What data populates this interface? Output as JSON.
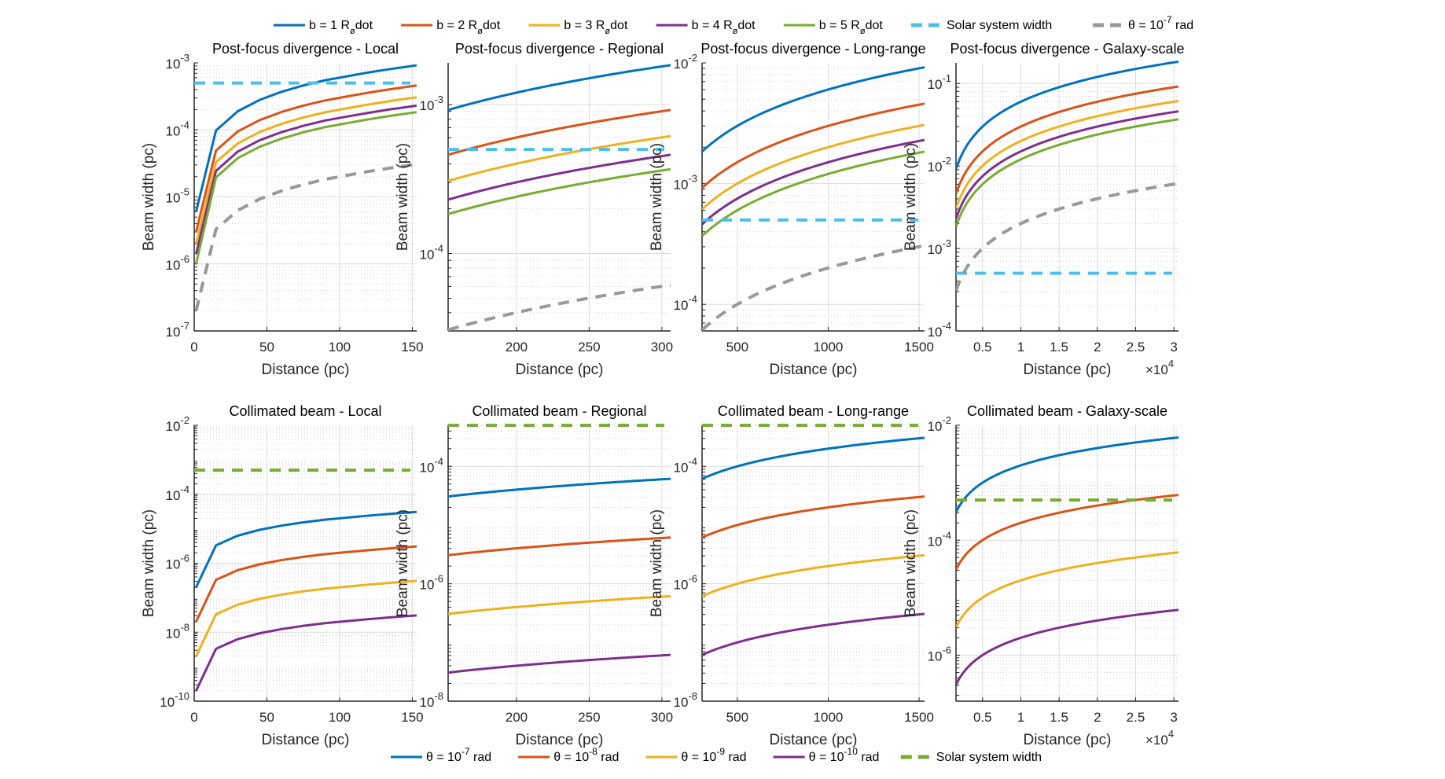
{
  "figure": {
    "top_legend": {
      "entries": [
        {
          "label": "b = 1 R",
          "sub": "ø",
          "suffix": "dot",
          "color": "#0072BD",
          "style": "solid"
        },
        {
          "label": "b = 2 R",
          "sub": "ø",
          "suffix": "dot",
          "color": "#D95319",
          "style": "solid"
        },
        {
          "label": "b = 3 R",
          "sub": "ø",
          "suffix": "dot",
          "color": "#EDB120",
          "style": "solid"
        },
        {
          "label": "b = 4 R",
          "sub": "ø",
          "suffix": "dot",
          "color": "#7E2F8E",
          "style": "solid"
        },
        {
          "label": "b = 5 R",
          "sub": "ø",
          "suffix": "dot",
          "color": "#77AC30",
          "style": "solid"
        },
        {
          "label": "Solar system width",
          "color": "#4DBEEE",
          "style": "dashed"
        },
        {
          "label": "θ = 10",
          "sup": "-7",
          "suffix": " rad",
          "color": "#999999",
          "style": "dashed"
        }
      ]
    },
    "bottom_legend": {
      "entries": [
        {
          "label": "θ = 10",
          "sup": "-7",
          "suffix": " rad",
          "color": "#0072BD",
          "style": "solid"
        },
        {
          "label": "θ = 10",
          "sup": "-8",
          "suffix": " rad",
          "color": "#D95319",
          "style": "solid"
        },
        {
          "label": "θ = 10",
          "sup": "-9",
          "suffix": " rad",
          "color": "#EDB120",
          "style": "solid"
        },
        {
          "label": "θ = 10",
          "sup": "-10",
          "suffix": " rad",
          "color": "#7E2F8E",
          "style": "solid"
        },
        {
          "label": "Solar system width",
          "color": "#77AC30",
          "style": "dashed"
        }
      ]
    }
  },
  "chart_data": [
    {
      "type": "line",
      "id": "pf-local",
      "row": 0,
      "col": 0,
      "title": "Post-focus divergence - Local",
      "xlabel": "Distance (pc)",
      "ylabel": "Beam width (pc)",
      "xscale": "linear",
      "yscale": "log",
      "xlim": [
        0,
        153
      ],
      "ylim_exp": [
        -7,
        -3
      ],
      "xticks": [
        0,
        50,
        100,
        150
      ],
      "xtick_labels": [
        "0",
        "50",
        "100",
        "150"
      ],
      "yticks_exp": [
        -7,
        -6,
        -5,
        -4,
        -3
      ],
      "grid": true,
      "x": [
        1.3,
        15,
        30,
        45,
        60,
        75,
        90,
        105,
        120,
        135,
        153
      ],
      "series": [
        {
          "name": "b = 1 R_ø dot",
          "color": "#0072BD",
          "style": "solid",
          "values": [
            6e-06,
            9.8e-05,
            0.00019,
            0.00028,
            0.00037,
            0.00046,
            0.00055,
            0.00063,
            0.00072,
            0.00081,
            0.00092
          ]
        },
        {
          "name": "b = 2 R_ø dot",
          "color": "#D95319",
          "style": "solid",
          "values": [
            3e-06,
            4.9e-05,
            9.5e-05,
            0.00014,
            0.000185,
            0.00023,
            0.000275,
            0.000315,
            0.00036,
            0.000405,
            0.00046
          ]
        },
        {
          "name": "b = 3 R_ø dot",
          "color": "#EDB120",
          "style": "solid",
          "values": [
            2e-06,
            3.3e-05,
            6.3e-05,
            9.3e-05,
            0.000123,
            0.000153,
            0.000183,
            0.00021,
            0.00024,
            0.00027,
            0.000307
          ]
        },
        {
          "name": "b = 4 R_ø dot",
          "color": "#7E2F8E",
          "style": "solid",
          "values": [
            1.4e-06,
            2.45e-05,
            4.75e-05,
            7e-05,
            9.25e-05,
            0.000115,
            0.000138,
            0.000158,
            0.00018,
            0.000203,
            0.00023
          ]
        },
        {
          "name": "b = 5 R_ø dot",
          "color": "#77AC30",
          "style": "solid",
          "values": [
            1e-06,
            1.95e-05,
            3.8e-05,
            5.6e-05,
            7.4e-05,
            9.2e-05,
            0.00011,
            0.000126,
            0.000144,
            0.000162,
            0.000184
          ]
        },
        {
          "name": "Solar system width",
          "color": "#4DBEEE",
          "style": "dashed",
          "constant": 0.0005
        },
        {
          "name": "θ = 1e-7 rad",
          "color": "#999999",
          "style": "dashed",
          "values": [
            2e-07,
            3.3e-06,
            6.3e-06,
            9.3e-06,
            1.23e-05,
            1.53e-05,
            1.83e-05,
            2.1e-05,
            2.4e-05,
            2.7e-05,
            3.07e-05
          ]
        }
      ]
    },
    {
      "type": "line",
      "id": "pf-regional",
      "row": 0,
      "col": 1,
      "title": "Post-focus divergence - Regional",
      "xlabel": "Distance (pc)",
      "ylabel": "Beam width (pc)",
      "xscale": "linear",
      "yscale": "log",
      "xlim": [
        153,
        306
      ],
      "ylim_exp": [
        -4.52,
        -2.72
      ],
      "xticks": [
        200,
        250,
        300
      ],
      "xtick_labels": [
        "200",
        "250",
        "300"
      ],
      "yticks_exp": [
        -4,
        -3
      ],
      "grid": true,
      "x": [
        153,
        306
      ],
      "curve": "linear",
      "series": [
        {
          "name": "b = 1 R_ø dot",
          "color": "#0072BD",
          "style": "solid",
          "values": [
            0.00092,
            0.00184
          ]
        },
        {
          "name": "b = 2 R_ø dot",
          "color": "#D95319",
          "style": "solid",
          "values": [
            0.00046,
            0.00092
          ]
        },
        {
          "name": "b = 3 R_ø dot",
          "color": "#EDB120",
          "style": "solid",
          "values": [
            0.000307,
            0.000613
          ]
        },
        {
          "name": "b = 4 R_ø dot",
          "color": "#7E2F8E",
          "style": "solid",
          "values": [
            0.00023,
            0.00046
          ]
        },
        {
          "name": "b = 5 R_ø dot",
          "color": "#77AC30",
          "style": "solid",
          "values": [
            0.000184,
            0.000368
          ]
        },
        {
          "name": "Solar system width",
          "color": "#4DBEEE",
          "style": "dashed",
          "constant": 0.0005
        },
        {
          "name": "θ = 1e-7 rad",
          "color": "#999999",
          "style": "dashed",
          "values": [
            3.07e-05,
            6.13e-05
          ]
        }
      ]
    },
    {
      "type": "line",
      "id": "pf-longrange",
      "row": 0,
      "col": 2,
      "title": "Post-focus divergence - Long-range",
      "xlabel": "Distance (pc)",
      "ylabel": "Beam width (pc)",
      "xscale": "linear",
      "yscale": "log",
      "xlim": [
        306,
        1530
      ],
      "ylim_exp": [
        -4.22,
        -2
      ],
      "xticks": [
        500,
        1000,
        1500
      ],
      "xtick_labels": [
        "500",
        "1000",
        "1500"
      ],
      "yticks_exp": [
        -4,
        -3,
        -2
      ],
      "grid": true,
      "x": [
        306,
        1530
      ],
      "curve": "linear",
      "series": [
        {
          "name": "b = 1 R_ø dot",
          "color": "#0072BD",
          "style": "solid",
          "values": [
            0.00184,
            0.0092
          ]
        },
        {
          "name": "b = 2 R_ø dot",
          "color": "#D95319",
          "style": "solid",
          "values": [
            0.00092,
            0.0046
          ]
        },
        {
          "name": "b = 3 R_ø dot",
          "color": "#EDB120",
          "style": "solid",
          "values": [
            0.000613,
            0.00307
          ]
        },
        {
          "name": "b = 4 R_ø dot",
          "color": "#7E2F8E",
          "style": "solid",
          "values": [
            0.00046,
            0.0023
          ]
        },
        {
          "name": "b = 5 R_ø dot",
          "color": "#77AC30",
          "style": "solid",
          "values": [
            0.000368,
            0.00184
          ]
        },
        {
          "name": "Solar system width",
          "color": "#4DBEEE",
          "style": "dashed",
          "constant": 0.0005
        },
        {
          "name": "θ = 1e-7 rad",
          "color": "#999999",
          "style": "dashed",
          "values": [
            6.13e-05,
            0.000307
          ]
        }
      ]
    },
    {
      "type": "line",
      "id": "pf-galaxy",
      "row": 0,
      "col": 3,
      "title": "Post-focus divergence - Galaxy-scale",
      "xlabel": "Distance (pc)",
      "ylabel": "Beam width (pc)",
      "xscale": "linear",
      "yscale": "log",
      "xlim": [
        1530,
        30600
      ],
      "ylim_exp": [
        -4,
        -0.75
      ],
      "xticks": [
        5000,
        10000,
        15000,
        20000,
        25000,
        30000
      ],
      "xtick_labels": [
        "0.5",
        "1",
        "1.5",
        "2",
        "2.5",
        "3"
      ],
      "x_multiplier": "×10",
      "x_multiplier_exp": "4",
      "yticks_exp": [
        -4,
        -3,
        -2,
        -1
      ],
      "grid": true,
      "x": [
        1530,
        30600
      ],
      "curve": "linear",
      "series": [
        {
          "name": "b = 1 R_ø dot",
          "color": "#0072BD",
          "style": "solid",
          "values": [
            0.0092,
            0.184
          ]
        },
        {
          "name": "b = 2 R_ø dot",
          "color": "#D95319",
          "style": "solid",
          "values": [
            0.0046,
            0.092
          ]
        },
        {
          "name": "b = 3 R_ø dot",
          "color": "#EDB120",
          "style": "solid",
          "values": [
            0.00307,
            0.0613
          ]
        },
        {
          "name": "b = 4 R_ø dot",
          "color": "#7E2F8E",
          "style": "solid",
          "values": [
            0.0023,
            0.046
          ]
        },
        {
          "name": "b = 5 R_ø dot",
          "color": "#77AC30",
          "style": "solid",
          "values": [
            0.00184,
            0.0368
          ]
        },
        {
          "name": "Solar system width",
          "color": "#4DBEEE",
          "style": "dashed",
          "constant": 0.0005
        },
        {
          "name": "θ = 1e-7 rad",
          "color": "#999999",
          "style": "dashed",
          "values": [
            0.000307,
            0.00613
          ]
        }
      ]
    },
    {
      "type": "line",
      "id": "col-local",
      "row": 1,
      "col": 0,
      "title": "Collimated beam - Local",
      "xlabel": "Distance (pc)",
      "ylabel": "Beam width (pc)",
      "xscale": "linear",
      "yscale": "log",
      "xlim": [
        0,
        153
      ],
      "ylim_exp": [
        -10,
        -2
      ],
      "xticks": [
        0,
        50,
        100,
        150
      ],
      "xtick_labels": [
        "0",
        "50",
        "100",
        "150"
      ],
      "yticks_exp": [
        -10,
        -8,
        -6,
        -4,
        -2
      ],
      "grid": true,
      "x": [
        1.3,
        15,
        30,
        45,
        60,
        75,
        90,
        105,
        120,
        135,
        153
      ],
      "series": [
        {
          "name": "θ = 1e-7 rad",
          "color": "#0072BD",
          "style": "solid",
          "values": [
            2e-07,
            3.3e-06,
            6.3e-06,
            9.3e-06,
            1.23e-05,
            1.53e-05,
            1.83e-05,
            2.1e-05,
            2.4e-05,
            2.7e-05,
            3.07e-05
          ]
        },
        {
          "name": "θ = 1e-8 rad",
          "color": "#D95319",
          "style": "solid",
          "values": [
            2e-08,
            3.3e-07,
            6.3e-07,
            9.3e-07,
            1.23e-06,
            1.53e-06,
            1.83e-06,
            2.1e-06,
            2.4e-06,
            2.7e-06,
            3.07e-06
          ]
        },
        {
          "name": "θ = 1e-9 rad",
          "color": "#EDB120",
          "style": "solid",
          "values": [
            2e-09,
            3.3e-08,
            6.3e-08,
            9.3e-08,
            1.23e-07,
            1.53e-07,
            1.83e-07,
            2.1e-07,
            2.4e-07,
            2.7e-07,
            3.07e-07
          ]
        },
        {
          "name": "θ = 1e-10 rad",
          "color": "#7E2F8E",
          "style": "solid",
          "values": [
            2e-10,
            3.3e-09,
            6.3e-09,
            9.3e-09,
            1.23e-08,
            1.53e-08,
            1.83e-08,
            2.1e-08,
            2.4e-08,
            2.7e-08,
            3.07e-08
          ]
        },
        {
          "name": "Solar system width",
          "color": "#77AC30",
          "style": "dashed",
          "constant": 0.0005
        }
      ]
    },
    {
      "type": "line",
      "id": "col-regional",
      "row": 1,
      "col": 1,
      "title": "Collimated beam - Regional",
      "xlabel": "Distance (pc)",
      "ylabel": "Beam width (pc)",
      "xscale": "linear",
      "yscale": "log",
      "xlim": [
        153,
        306
      ],
      "ylim_exp": [
        -8,
        -3.3
      ],
      "xticks": [
        200,
        250,
        300
      ],
      "xtick_labels": [
        "200",
        "250",
        "300"
      ],
      "yticks_exp": [
        -8,
        -6,
        -4
      ],
      "grid": true,
      "x": [
        153,
        306
      ],
      "curve": "linear",
      "series": [
        {
          "name": "θ = 1e-7 rad",
          "color": "#0072BD",
          "style": "solid",
          "values": [
            3.07e-05,
            6.13e-05
          ]
        },
        {
          "name": "θ = 1e-8 rad",
          "color": "#D95319",
          "style": "solid",
          "values": [
            3.07e-06,
            6.13e-06
          ]
        },
        {
          "name": "θ = 1e-9 rad",
          "color": "#EDB120",
          "style": "solid",
          "values": [
            3.07e-07,
            6.13e-07
          ]
        },
        {
          "name": "θ = 1e-10 rad",
          "color": "#7E2F8E",
          "style": "solid",
          "values": [
            3.07e-08,
            6.13e-08
          ]
        },
        {
          "name": "Solar system width",
          "color": "#77AC30",
          "style": "dashed",
          "constant": 0.0005
        }
      ]
    },
    {
      "type": "line",
      "id": "col-longrange",
      "row": 1,
      "col": 2,
      "title": "Collimated beam - Long-range",
      "xlabel": "Distance (pc)",
      "ylabel": "Beam width (pc)",
      "xscale": "linear",
      "yscale": "log",
      "xlim": [
        306,
        1530
      ],
      "ylim_exp": [
        -8,
        -3.3
      ],
      "xticks": [
        500,
        1000,
        1500
      ],
      "xtick_labels": [
        "500",
        "1000",
        "1500"
      ],
      "yticks_exp": [
        -8,
        -6,
        -4
      ],
      "grid": true,
      "x": [
        306,
        1530
      ],
      "curve": "linear",
      "series": [
        {
          "name": "θ = 1e-7 rad",
          "color": "#0072BD",
          "style": "solid",
          "values": [
            6.13e-05,
            0.000307
          ]
        },
        {
          "name": "θ = 1e-8 rad",
          "color": "#D95319",
          "style": "solid",
          "values": [
            6.13e-06,
            3.07e-05
          ]
        },
        {
          "name": "θ = 1e-9 rad",
          "color": "#EDB120",
          "style": "solid",
          "values": [
            6.13e-07,
            3.07e-06
          ]
        },
        {
          "name": "θ = 1e-10 rad",
          "color": "#7E2F8E",
          "style": "solid",
          "values": [
            6.13e-08,
            3.07e-07
          ]
        },
        {
          "name": "Solar system width",
          "color": "#77AC30",
          "style": "dashed",
          "constant": 0.0005
        }
      ]
    },
    {
      "type": "line",
      "id": "col-galaxy",
      "row": 1,
      "col": 3,
      "title": "Collimated beam - Galaxy-scale",
      "xlabel": "Distance (pc)",
      "ylabel": "Beam width (pc)",
      "xscale": "linear",
      "yscale": "log",
      "xlim": [
        1530,
        30600
      ],
      "ylim_exp": [
        -6.8,
        -2
      ],
      "xticks": [
        5000,
        10000,
        15000,
        20000,
        25000,
        30000
      ],
      "xtick_labels": [
        "0.5",
        "1",
        "1.5",
        "2",
        "2.5",
        "3"
      ],
      "x_multiplier": "×10",
      "x_multiplier_exp": "4",
      "yticks_exp": [
        -6,
        -4,
        -2
      ],
      "grid": true,
      "x": [
        1530,
        30600
      ],
      "curve": "linear",
      "series": [
        {
          "name": "θ = 1e-7 rad",
          "color": "#0072BD",
          "style": "solid",
          "values": [
            0.000307,
            0.00613
          ]
        },
        {
          "name": "θ = 1e-8 rad",
          "color": "#D95319",
          "style": "solid",
          "values": [
            3.07e-05,
            0.000613
          ]
        },
        {
          "name": "θ = 1e-9 rad",
          "color": "#EDB120",
          "style": "solid",
          "values": [
            3.07e-06,
            6.13e-05
          ]
        },
        {
          "name": "θ = 1e-10 rad",
          "color": "#7E2F8E",
          "style": "solid",
          "values": [
            3.07e-07,
            6.13e-06
          ]
        },
        {
          "name": "Solar system width",
          "color": "#77AC30",
          "style": "dashed",
          "constant": 0.0005
        }
      ]
    }
  ]
}
